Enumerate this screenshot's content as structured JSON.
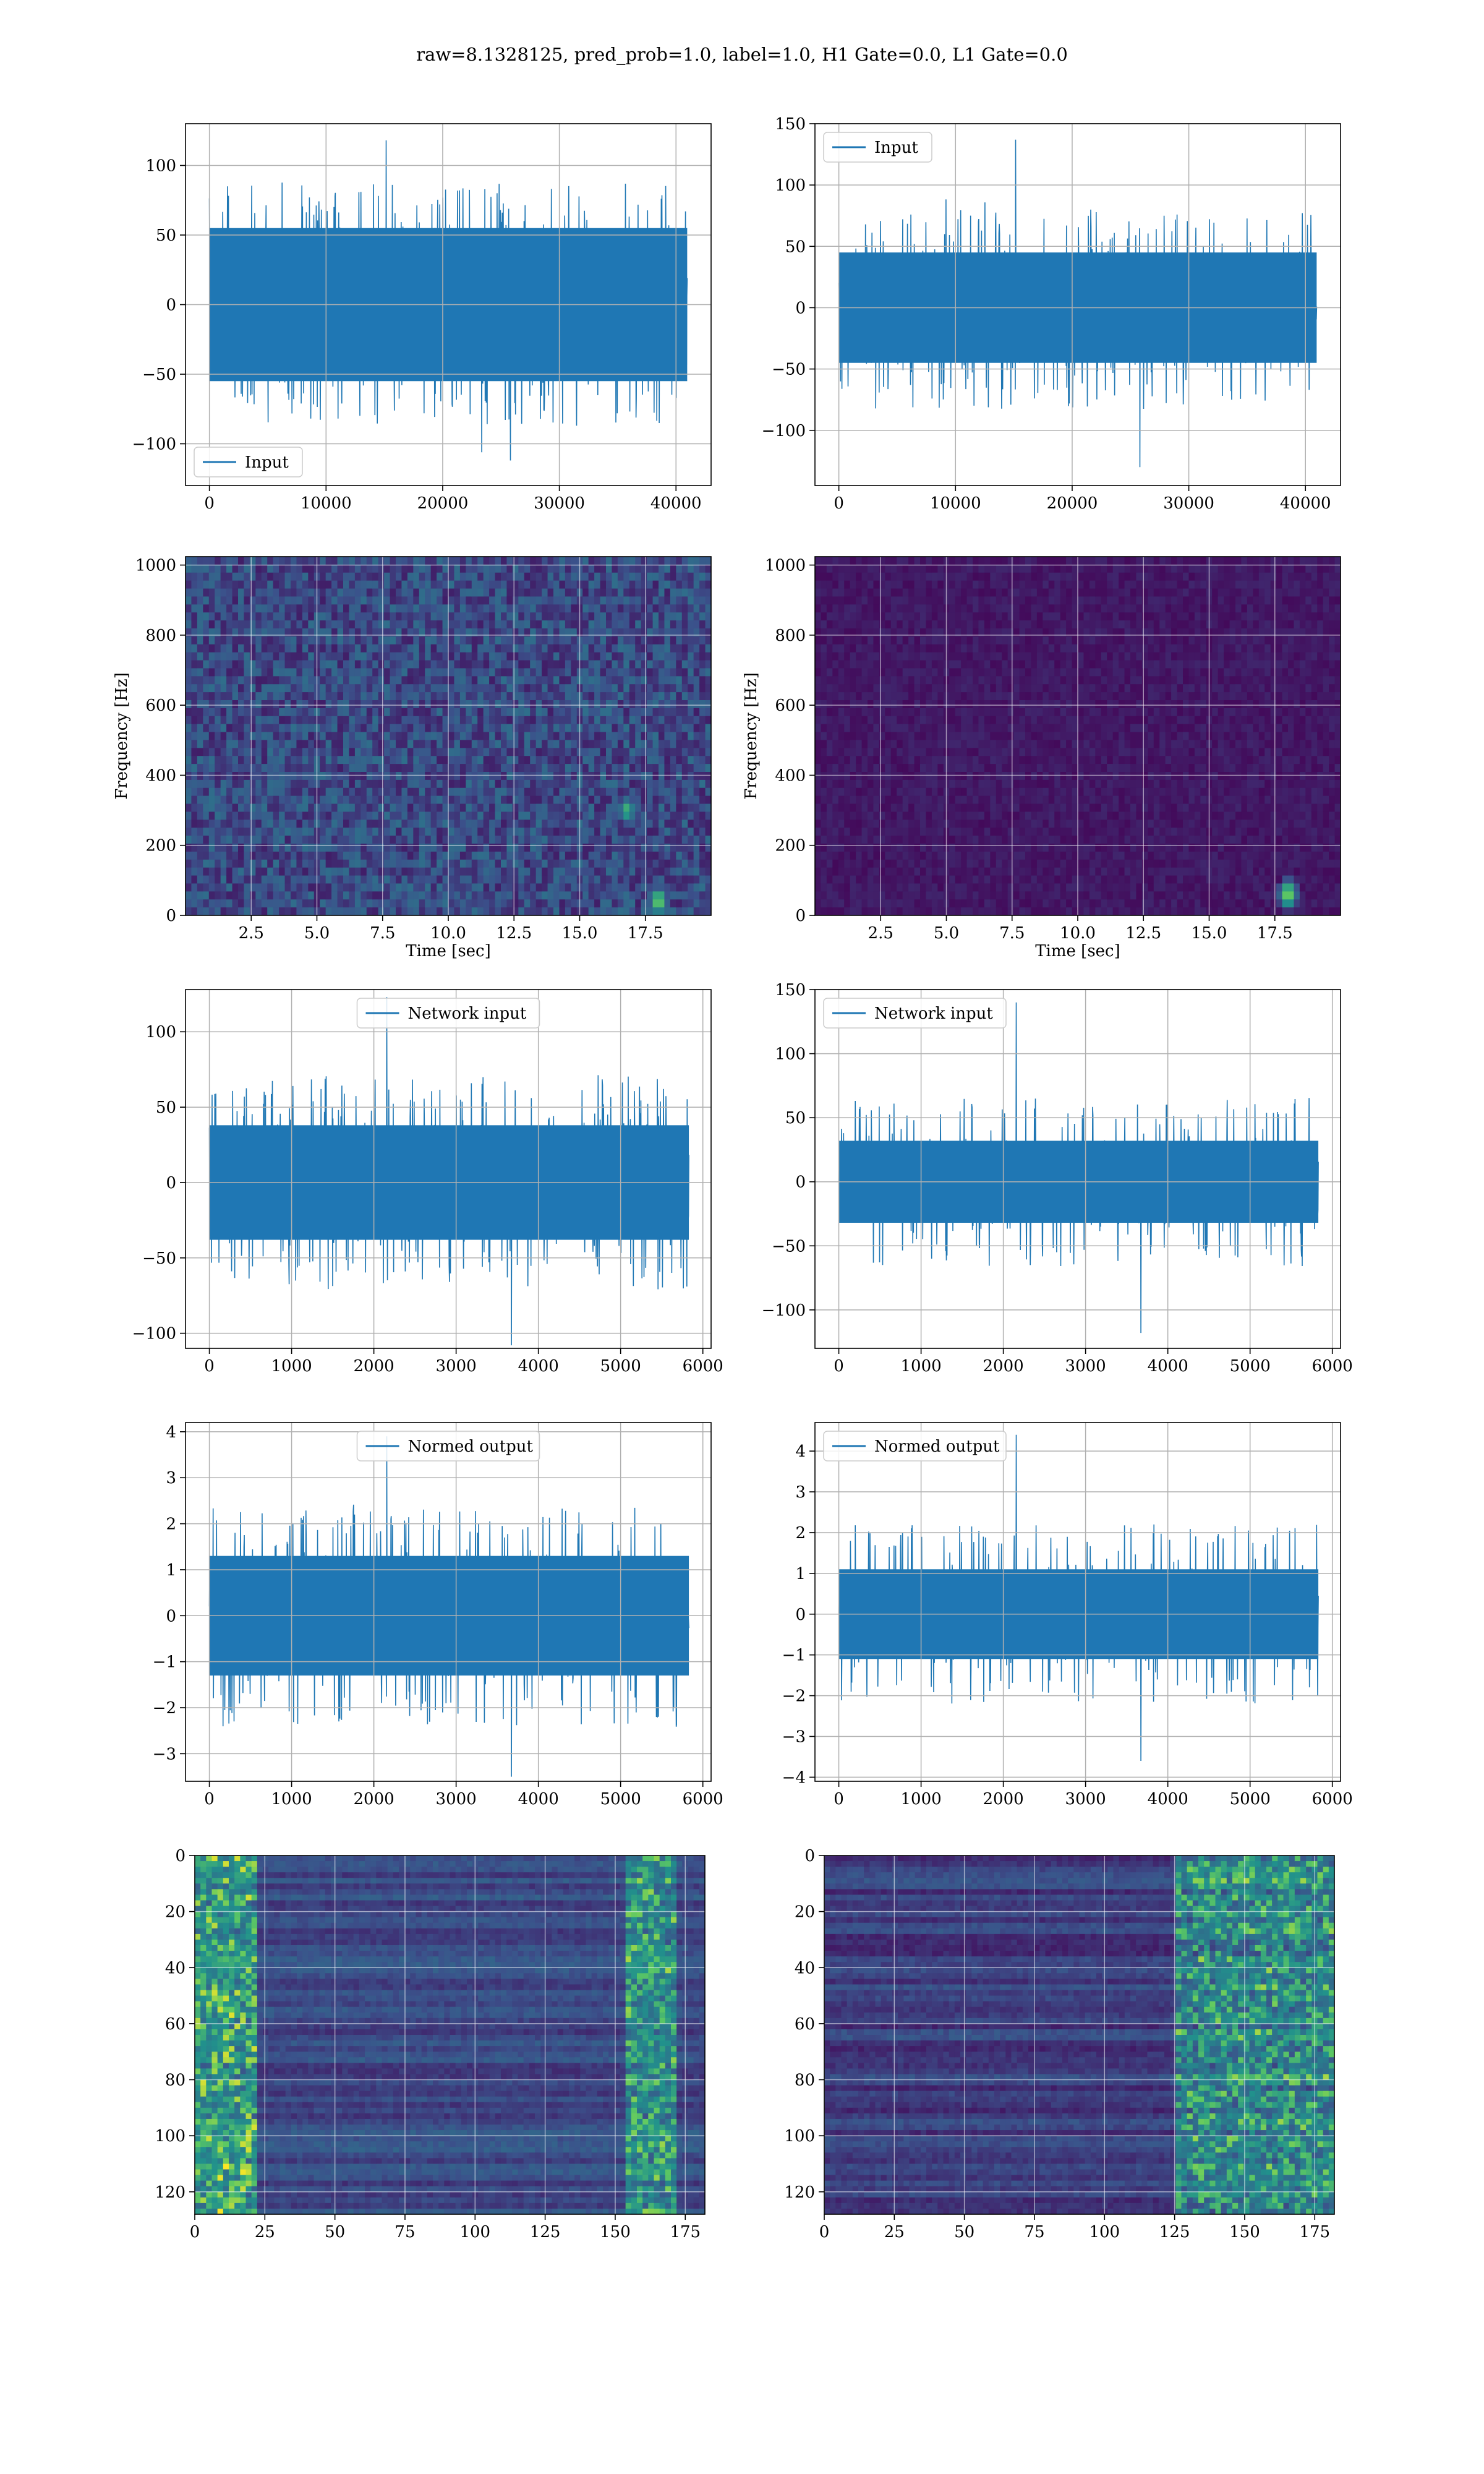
{
  "figure": {
    "suptitle": "raw=8.1328125, pred_prob=1.0, label=1.0, H1 Gate=0.0, L1 Gate=0.0",
    "series_color": "#1f77b4"
  },
  "chart_data": [
    {
      "id": "input-left",
      "type": "line",
      "legend": {
        "label": "Input",
        "loc": "lower left"
      },
      "xlim": [
        -2048,
        43008
      ],
      "ylim": [
        -130,
        130
      ],
      "xticks": [
        0,
        10000,
        20000,
        30000,
        40000
      ],
      "xtick_labels": [
        "0",
        "10000",
        "20000",
        "30000",
        "40000"
      ],
      "yticks": [
        -100,
        -50,
        0,
        50,
        100
      ],
      "ytick_labels": [
        "−100",
        "−50",
        "0",
        "50",
        "100"
      ],
      "x_range": [
        0,
        40960
      ],
      "noise": {
        "core_amplitude": 55,
        "typical_peak": 80,
        "max_peak": 118,
        "min_trough": -112
      }
    },
    {
      "id": "input-right",
      "type": "line",
      "legend": {
        "label": "Input",
        "loc": "upper left"
      },
      "xlim": [
        -2048,
        43008
      ],
      "ylim": [
        -145,
        150
      ],
      "xticks": [
        0,
        10000,
        20000,
        30000,
        40000
      ],
      "xtick_labels": [
        "0",
        "10000",
        "20000",
        "30000",
        "40000"
      ],
      "yticks": [
        -100,
        -50,
        0,
        50,
        100,
        150
      ],
      "ytick_labels": [
        "−100",
        "−50",
        "0",
        "50",
        "100",
        "150"
      ],
      "x_range": [
        0,
        40960
      ],
      "noise": {
        "core_amplitude": 45,
        "typical_peak": 75,
        "max_peak": 137,
        "min_trough": -130
      }
    },
    {
      "id": "spec-left",
      "type": "heatmap",
      "xlabel": "Time [sec]",
      "ylabel": "Frequency [Hz]",
      "xlim": [
        0,
        20
      ],
      "ylim": [
        0,
        1024
      ],
      "xticks": [
        2.5,
        5.0,
        7.5,
        10.0,
        12.5,
        15.0,
        17.5
      ],
      "xtick_labels": [
        "2.5",
        "5.0",
        "7.5",
        "10.0",
        "12.5",
        "15.0",
        "17.5"
      ],
      "yticks": [
        0,
        200,
        400,
        600,
        800,
        1000
      ],
      "ytick_labels": [
        "0",
        "200",
        "400",
        "600",
        "800",
        "1000"
      ],
      "colormap": "viridis",
      "background_level": 0.25,
      "hot_spots": [
        {
          "t": 18.0,
          "f": 40,
          "level": 0.9
        },
        {
          "t": 16.8,
          "f": 300,
          "level": 0.7
        }
      ]
    },
    {
      "id": "spec-right",
      "type": "heatmap",
      "xlabel": "Time [sec]",
      "ylabel": "Frequency [Hz]",
      "xlim": [
        0,
        20
      ],
      "ylim": [
        0,
        1024
      ],
      "xticks": [
        2.5,
        5.0,
        7.5,
        10.0,
        12.5,
        15.0,
        17.5
      ],
      "xtick_labels": [
        "2.5",
        "5.0",
        "7.5",
        "10.0",
        "12.5",
        "15.0",
        "17.5"
      ],
      "yticks": [
        0,
        200,
        400,
        600,
        800,
        1000
      ],
      "ytick_labels": [
        "0",
        "200",
        "400",
        "600",
        "800",
        "1000"
      ],
      "colormap": "viridis",
      "background_level": 0.08,
      "hot_spots": [
        {
          "t": 18.0,
          "f": 60,
          "level": 0.95
        }
      ]
    },
    {
      "id": "network-input-left",
      "type": "line",
      "legend": {
        "label": "Network input",
        "loc": "upper center"
      },
      "xlim": [
        -290,
        6100
      ],
      "ylim": [
        -110,
        128
      ],
      "xticks": [
        0,
        1000,
        2000,
        3000,
        4000,
        5000,
        6000
      ],
      "xtick_labels": [
        "0",
        "1000",
        "2000",
        "3000",
        "4000",
        "5000",
        "6000"
      ],
      "yticks": [
        -100,
        -50,
        0,
        50,
        100
      ],
      "ytick_labels": [
        "−100",
        "−50",
        "0",
        "50",
        "100"
      ],
      "x_range": [
        0,
        5830
      ],
      "noise": {
        "core_amplitude": 38,
        "typical_peak": 65,
        "max_peak": 123,
        "min_trough": -108
      }
    },
    {
      "id": "network-input-right",
      "type": "line",
      "legend": {
        "label": "Network input",
        "loc": "upper left"
      },
      "xlim": [
        -290,
        6100
      ],
      "ylim": [
        -130,
        150
      ],
      "xticks": [
        0,
        1000,
        2000,
        3000,
        4000,
        5000,
        6000
      ],
      "xtick_labels": [
        "0",
        "1000",
        "2000",
        "3000",
        "4000",
        "5000",
        "6000"
      ],
      "yticks": [
        -100,
        -50,
        0,
        50,
        100,
        150
      ],
      "ytick_labels": [
        "−100",
        "−50",
        "0",
        "50",
        "100",
        "150"
      ],
      "x_range": [
        0,
        5830
      ],
      "noise": {
        "core_amplitude": 32,
        "typical_peak": 60,
        "max_peak": 140,
        "min_trough": -118
      }
    },
    {
      "id": "normed-output-left",
      "type": "line",
      "legend": {
        "label": "Normed output",
        "loc": "upper center"
      },
      "xlim": [
        -290,
        6100
      ],
      "ylim": [
        -3.6,
        4.2
      ],
      "xticks": [
        0,
        1000,
        2000,
        3000,
        4000,
        5000,
        6000
      ],
      "xtick_labels": [
        "0",
        "1000",
        "2000",
        "3000",
        "4000",
        "5000",
        "6000"
      ],
      "yticks": [
        -3,
        -2,
        -1,
        0,
        1,
        2,
        3,
        4
      ],
      "ytick_labels": [
        "−3",
        "−2",
        "−1",
        "0",
        "1",
        "2",
        "3",
        "4"
      ],
      "x_range": [
        0,
        5830
      ],
      "noise": {
        "core_amplitude": 1.3,
        "typical_peak": 2.2,
        "max_peak": 3.9,
        "min_trough": -3.5
      }
    },
    {
      "id": "normed-output-right",
      "type": "line",
      "legend": {
        "label": "Normed output",
        "loc": "upper left"
      },
      "xlim": [
        -290,
        6100
      ],
      "ylim": [
        -4.1,
        4.7
      ],
      "xticks": [
        0,
        1000,
        2000,
        3000,
        4000,
        5000,
        6000
      ],
      "xtick_labels": [
        "0",
        "1000",
        "2000",
        "3000",
        "4000",
        "5000",
        "6000"
      ],
      "yticks": [
        -4,
        -3,
        -2,
        -1,
        0,
        1,
        2,
        3,
        4
      ],
      "ytick_labels": [
        "−4",
        "−3",
        "−2",
        "−1",
        "0",
        "1",
        "2",
        "3",
        "4"
      ],
      "x_range": [
        0,
        5830
      ],
      "noise": {
        "core_amplitude": 1.1,
        "typical_peak": 2.0,
        "max_peak": 4.4,
        "min_trough": -3.6
      }
    },
    {
      "id": "feature-map-left",
      "type": "heatmap",
      "xlim": [
        0,
        182
      ],
      "ylim": [
        128,
        0
      ],
      "xticks": [
        0,
        25,
        50,
        75,
        100,
        125,
        150,
        175
      ],
      "xtick_labels": [
        "0",
        "25",
        "50",
        "75",
        "100",
        "125",
        "150",
        "175"
      ],
      "yticks": [
        0,
        20,
        40,
        60,
        80,
        100,
        120
      ],
      "ytick_labels": [
        "0",
        "20",
        "40",
        "60",
        "80",
        "100",
        "120"
      ],
      "colormap": "viridis",
      "background_level": 0.18,
      "active_regions": [
        {
          "x_from": 0,
          "x_to": 22,
          "level": 0.7
        },
        {
          "x_from": 153,
          "x_to": 172,
          "level": 0.6
        }
      ]
    },
    {
      "id": "feature-map-right",
      "type": "heatmap",
      "xlim": [
        0,
        182
      ],
      "ylim": [
        128,
        0
      ],
      "xticks": [
        0,
        25,
        50,
        75,
        100,
        125,
        150,
        175
      ],
      "xtick_labels": [
        "0",
        "25",
        "50",
        "75",
        "100",
        "125",
        "150",
        "175"
      ],
      "yticks": [
        0,
        20,
        40,
        60,
        80,
        100,
        120
      ],
      "ytick_labels": [
        "0",
        "20",
        "40",
        "60",
        "80",
        "100",
        "120"
      ],
      "colormap": "viridis",
      "background_level": 0.12,
      "active_regions": [
        {
          "x_from": 125,
          "x_to": 182,
          "level": 0.6
        }
      ]
    }
  ]
}
